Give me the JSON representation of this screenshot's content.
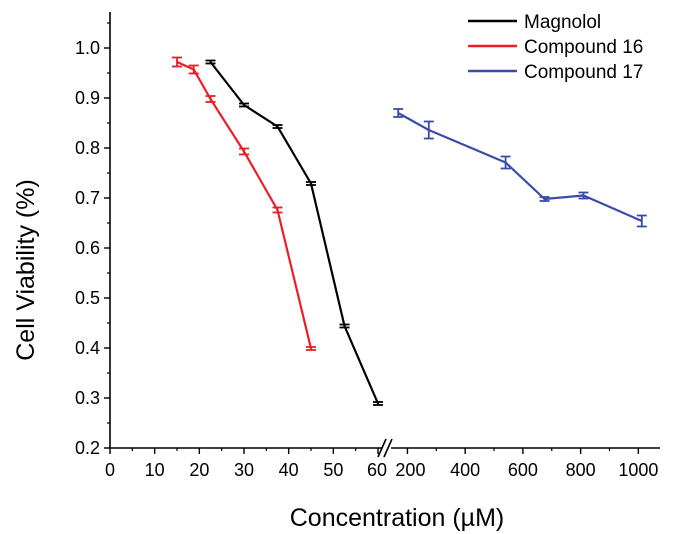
{
  "chart_data": {
    "type": "line",
    "title": "",
    "xlabel": "Concentration (µM)",
    "ylabel": "Cell Viability (%)",
    "ylim": [
      0.2,
      1.05
    ],
    "y_ticks": [
      "0.2",
      "0.3",
      "0.4",
      "0.5",
      "0.6",
      "0.7",
      "0.8",
      "0.9",
      "1.0"
    ],
    "x_axis_break": true,
    "x_segments": [
      {
        "range": [
          0,
          60
        ],
        "ticks": [
          "0",
          "10",
          "20",
          "30",
          "40",
          "50",
          "60"
        ]
      },
      {
        "range": [
          150,
          1075
        ],
        "ticks": [
          "200",
          "400",
          "600",
          "800",
          "1000"
        ]
      }
    ],
    "grid": false,
    "legend_position": "top-right",
    "series": [
      {
        "name": "Magnolol",
        "color": "#000000",
        "points": [
          {
            "x": 22.5,
            "y": 0.972,
            "err": 0.003
          },
          {
            "x": 30,
            "y": 0.886,
            "err": 0.003
          },
          {
            "x": 37.5,
            "y": 0.843,
            "err": 0.003
          },
          {
            "x": 45,
            "y": 0.729,
            "err": 0.003
          },
          {
            "x": 52.5,
            "y": 0.444,
            "err": 0.003
          },
          {
            "x": 60,
            "y": 0.289,
            "err": 0.003
          }
        ]
      },
      {
        "name": "Compound 16",
        "color": "#ee1c24",
        "points": [
          {
            "x": 15,
            "y": 0.972,
            "err": 0.009
          },
          {
            "x": 18.75,
            "y": 0.957,
            "err": 0.008
          },
          {
            "x": 22.5,
            "y": 0.898,
            "err": 0.006
          },
          {
            "x": 30,
            "y": 0.793,
            "err": 0.006
          },
          {
            "x": 37.5,
            "y": 0.676,
            "err": 0.005
          },
          {
            "x": 45,
            "y": 0.399,
            "err": 0.003
          }
        ]
      },
      {
        "name": "Compound 17",
        "color": "#3a4ba8",
        "points": [
          {
            "x": 168,
            "y": 0.87,
            "err": 0.008
          },
          {
            "x": 274,
            "y": 0.836,
            "err": 0.017
          },
          {
            "x": 540,
            "y": 0.771,
            "err": 0.012
          },
          {
            "x": 675,
            "y": 0.698,
            "err": 0.004
          },
          {
            "x": 810,
            "y": 0.705,
            "err": 0.006
          },
          {
            "x": 1012,
            "y": 0.654,
            "err": 0.011
          }
        ]
      }
    ]
  }
}
